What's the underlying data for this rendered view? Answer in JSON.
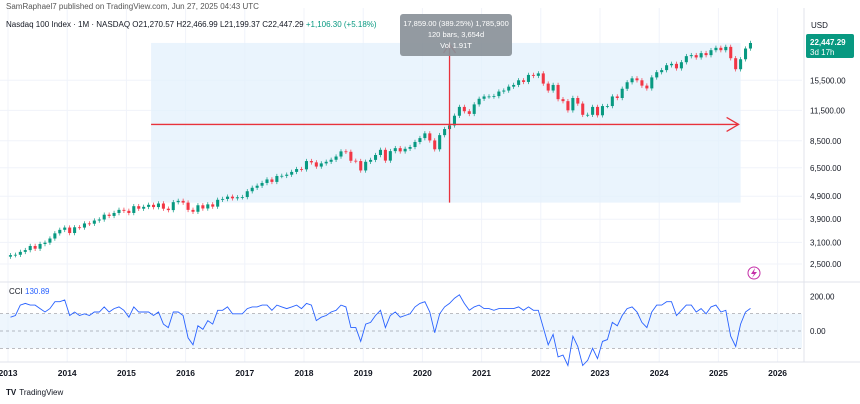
{
  "header": {
    "publisher": "SamRaphael7 published on TradingView.com, Jun 27, 2025 04:43 UTC",
    "symbol": "Nasdaq 100 Index · 1M · NASDAQ",
    "open": "O21,270.57",
    "high": "H22,466.99",
    "low": "L21,199.37",
    "close": "C22,447.29",
    "change": "+1,106.30 (+5.18%)"
  },
  "measure_tooltip": {
    "line1": "17,859.00 (389.25%) 1,785,900",
    "line2": "120 bars, 3,654d",
    "line3": "Vol 1.91T"
  },
  "price_badge": {
    "value": "22,447.29",
    "countdown": "3d 17h"
  },
  "currency": "USD",
  "cci": {
    "label": "CCI",
    "value": "130.89"
  },
  "footer": {
    "brand": "TradingView"
  },
  "colors": {
    "up": "#089981",
    "down": "#f23645",
    "cci": "#2962ff",
    "measure_fill": "#e3f0fc",
    "measure_line": "#e8323c",
    "badge": "#089981"
  },
  "chart_data": {
    "type": "candlestick",
    "title": "Nasdaq 100 Index · 1M · NASDAQ",
    "x_axis": {
      "labels": [
        "2013",
        "2014",
        "2015",
        "2016",
        "2017",
        "2018",
        "2019",
        "2020",
        "2021",
        "2022",
        "2023",
        "2024",
        "2025",
        "2026"
      ]
    },
    "y_axis": {
      "scale": "log",
      "tick_labels": [
        "22,447.29",
        "15,500.00",
        "11,500.00",
        "8,500.00",
        "6,500.00",
        "4,900.00",
        "3,900.00",
        "3,100.00",
        "2,500.00"
      ],
      "range": [
        2300,
        24500
      ]
    },
    "series": [
      {
        "name": "Nasdaq 100 Index",
        "start": "2013-01",
        "interval": "1M",
        "close": [
          2730,
          2740,
          2820,
          2870,
          2990,
          2910,
          3050,
          3090,
          3220,
          3390,
          3510,
          3590,
          3400,
          3600,
          3590,
          3740,
          3730,
          3850,
          3890,
          4080,
          4030,
          4150,
          4280,
          4240,
          4150,
          4440,
          4330,
          4410,
          4500,
          4400,
          4560,
          4330,
          4270,
          4620,
          4680,
          4600,
          4280,
          4200,
          4480,
          4340,
          4520,
          4420,
          4730,
          4770,
          4880,
          4800,
          4850,
          4860,
          5150,
          5330,
          5440,
          5590,
          5790,
          5650,
          5990,
          6000,
          6070,
          6240,
          6420,
          6400,
          6950,
          6860,
          6580,
          6790,
          6900,
          7040,
          7270,
          7650,
          7620,
          6970,
          6950,
          6330,
          6900,
          7030,
          7380,
          7770,
          6980,
          7670,
          7900,
          7650,
          7850,
          7990,
          8400,
          8730,
          9150,
          8530,
          7810,
          8990,
          9550,
          9900,
          10900,
          11900,
          11400,
          11100,
          12200,
          12900,
          13200,
          13200,
          13250,
          13860,
          14000,
          14550,
          14800,
          15500,
          15250,
          16350,
          16200,
          16600,
          15000,
          14000,
          14800,
          12850,
          12600,
          11500,
          13000,
          12300,
          11000,
          11000,
          11900,
          10950,
          12000,
          12000,
          13200,
          13000,
          14250,
          15200,
          15800,
          15500,
          14700,
          14300,
          15950,
          16800,
          17150,
          18000,
          18250,
          17450,
          18550,
          19700,
          19900,
          19450,
          20300,
          19900,
          20900,
          21400,
          20900,
          21600,
          19300,
          17300,
          19100,
          21250,
          22450
        ]
      }
    ],
    "measure_box": {
      "from": "2015-06",
      "to": "2025-05",
      "price_from": 4600,
      "price_to": 22450,
      "change": "17,859.00 (389.25%)",
      "bars": 120,
      "days": 3654
    },
    "cci_panel": {
      "label": "CCI",
      "current": 130.89,
      "band_upper": 100,
      "band_lower": -100,
      "tick_labels": [
        "200.00",
        "0.00"
      ],
      "values": [
        80,
        90,
        150,
        160,
        150,
        150,
        130,
        110,
        130,
        170,
        170,
        180,
        90,
        110,
        90,
        100,
        90,
        110,
        110,
        140,
        110,
        130,
        140,
        120,
        80,
        140,
        110,
        110,
        110,
        90,
        110,
        40,
        20,
        110,
        110,
        90,
        -40,
        -80,
        30,
        10,
        60,
        40,
        120,
        120,
        140,
        100,
        100,
        100,
        130,
        140,
        140,
        150,
        150,
        120,
        150,
        140,
        130,
        140,
        150,
        130,
        160,
        150,
        60,
        80,
        90,
        110,
        120,
        150,
        140,
        20,
        20,
        -60,
        40,
        50,
        90,
        120,
        20,
        90,
        110,
        80,
        90,
        100,
        140,
        160,
        170,
        110,
        -10,
        100,
        140,
        160,
        190,
        210,
        160,
        120,
        140,
        150,
        130,
        130,
        120,
        130,
        130,
        130,
        130,
        140,
        120,
        140,
        120,
        120,
        20,
        -80,
        -20,
        -150,
        -140,
        -200,
        -30,
        -90,
        -200,
        -170,
        -100,
        -160,
        -60,
        -50,
        50,
        30,
        90,
        130,
        140,
        110,
        50,
        20,
        110,
        150,
        150,
        170,
        170,
        90,
        120,
        150,
        150,
        110,
        130,
        100,
        140,
        150,
        110,
        120,
        -30,
        -90,
        40,
        110,
        131
      ]
    }
  }
}
